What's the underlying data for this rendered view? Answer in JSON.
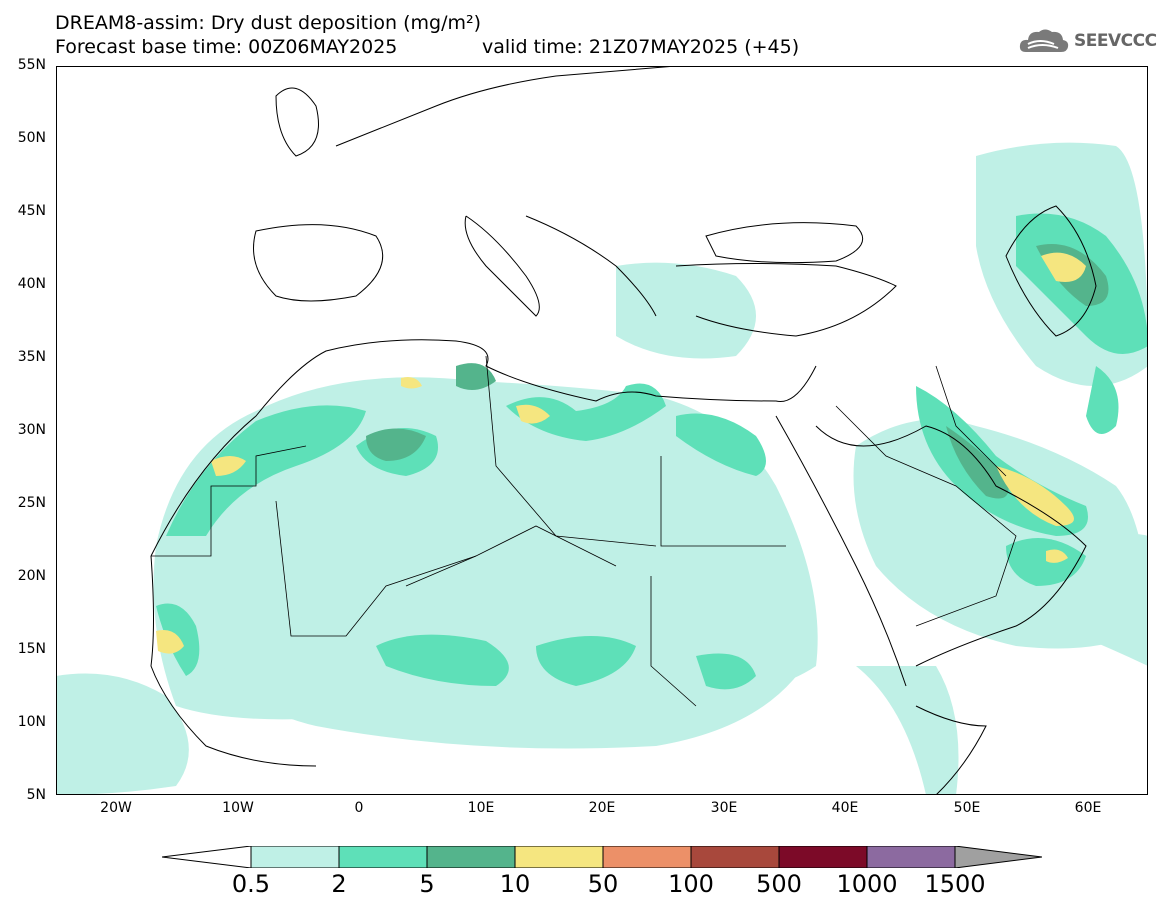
{
  "title": {
    "line1": "DREAM8-assim: Dry dust deposition (mg/m²)",
    "line2": "Forecast base time: 00Z06MAY2025",
    "valid": "valid time: 21Z07MAY2025 (+45)"
  },
  "logo": {
    "text": "SEEVCCC",
    "icon": "cloud-icon"
  },
  "map": {
    "lat_labels": [
      "55N",
      "50N",
      "45N",
      "40N",
      "35N",
      "30N",
      "25N",
      "20N",
      "15N",
      "10N",
      "5N"
    ],
    "lon_labels": [
      "20W",
      "10W",
      "0",
      "10E",
      "20E",
      "30E",
      "40E",
      "50E",
      "60E"
    ]
  },
  "colors": {
    "c1": "#bff0e6",
    "c2": "#5ee0b8",
    "c3": "#54b48c",
    "c4": "#f5e680",
    "c5": "#ec9068",
    "c6": "#a8483c",
    "c7": "#7c0a28",
    "c8": "#8c6aa0",
    "c9": "#a0a0a0"
  },
  "colorbar": {
    "labels": [
      "0.5",
      "2",
      "5",
      "10",
      "50",
      "100",
      "500",
      "1000",
      "1500"
    ]
  }
}
